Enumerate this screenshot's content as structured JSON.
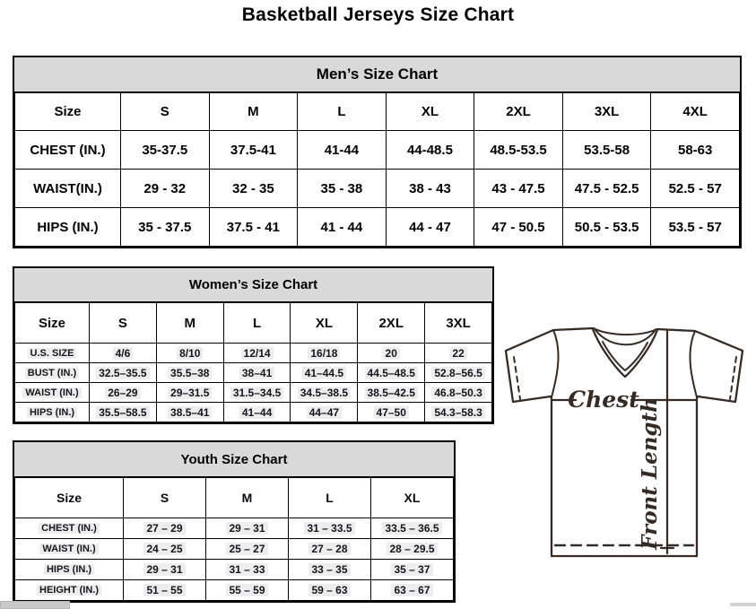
{
  "page_title": "Basketball Jerseys Size Chart",
  "colors": {
    "table_header_bg": "#d9d9d9",
    "table_border": "#000000",
    "cell_highlight": "#ededed",
    "sub_table_text": "#15151d",
    "diagram_line": "#362b24"
  },
  "tables": {
    "men": {
      "title": "Men’s Size Chart",
      "columns": [
        "Size",
        "S",
        "M",
        "L",
        "XL",
        "2XL",
        "3XL",
        "4XL"
      ],
      "rows": [
        {
          "label": "CHEST (IN.)",
          "values": [
            "35-37.5",
            "37.5-41",
            "41-44",
            "44-48.5",
            "48.5-53.5",
            "53.5-58",
            "58-63"
          ]
        },
        {
          "label": "WAIST(IN.)",
          "values": [
            "29 - 32",
            "32 - 35",
            "35 - 38",
            "38 - 43",
            "43 - 47.5",
            "47.5 - 52.5",
            "52.5 - 57"
          ]
        },
        {
          "label": "HIPS (IN.)",
          "values": [
            "35 - 37.5",
            "37.5 - 41",
            "41 - 44",
            "44 - 47",
            "47 - 50.5",
            "50.5 - 53.5",
            "53.5 - 57"
          ]
        }
      ]
    },
    "women": {
      "title": "Women’s Size Chart",
      "columns": [
        "Size",
        "S",
        "M",
        "L",
        "XL",
        "2XL",
        "3XL"
      ],
      "rows": [
        {
          "label": "U.S. SIZE",
          "values": [
            "4/6",
            "8/10",
            "12/14",
            "16/18",
            "20",
            "22"
          ]
        },
        {
          "label": "BUST (IN.)",
          "values": [
            "32.5–35.5",
            "35.5–38",
            "38–41",
            "41–44.5",
            "44.5–48.5",
            "52.8–56.5"
          ]
        },
        {
          "label": "WAIST (IN.)",
          "values": [
            "26–29",
            "29–31.5",
            "31.5–34.5",
            "34.5–38.5",
            "38.5–42.5",
            "46.8–50.3"
          ]
        },
        {
          "label": "HIPS (IN.)",
          "values": [
            "35.5–58.5",
            "38.5–41",
            "41–44",
            "44–47",
            "47–50",
            "54.3–58.3"
          ]
        }
      ]
    },
    "youth": {
      "title": "Youth Size Chart",
      "columns": [
        "Size",
        "S",
        "M",
        "L",
        "XL"
      ],
      "rows": [
        {
          "label": "CHEST (IN.)",
          "values": [
            "27 – 29",
            "29 – 31",
            "31 – 33.5",
            "33.5 – 36.5"
          ]
        },
        {
          "label": "WAIST (IN.)",
          "values": [
            "24 – 25",
            "25 – 27",
            "27 – 28",
            "28 – 29.5"
          ]
        },
        {
          "label": "HIPS (IN.)",
          "values": [
            "29 – 31",
            "31 – 33",
            "33 – 35",
            "35 – 37"
          ]
        },
        {
          "label": "HEIGHT (IN.)",
          "values": [
            "51 – 55",
            "55 – 59",
            "59 – 63",
            "63 – 67"
          ]
        }
      ]
    }
  },
  "diagram": {
    "chest_label": "Chest",
    "front_length_label": "Front Length"
  }
}
